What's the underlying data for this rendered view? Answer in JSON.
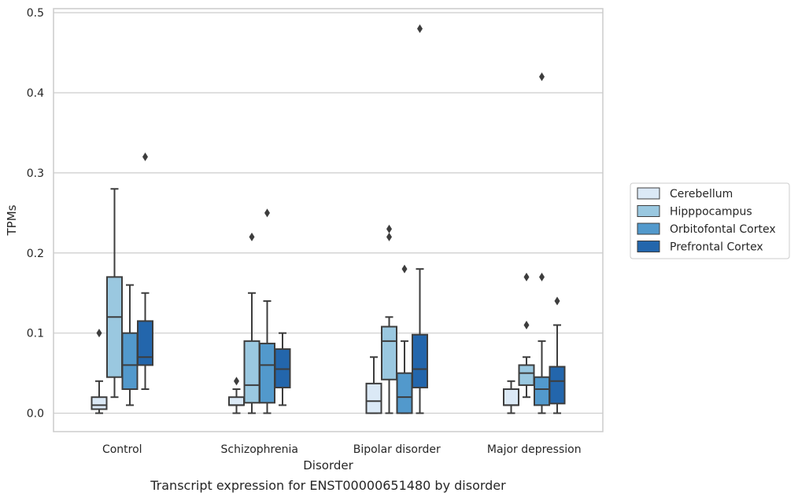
{
  "caption": "Transcript expression for ENST00000651480 by disorder",
  "chart_data": {
    "type": "boxplot",
    "xlabel": "Disorder",
    "ylabel": "TPMs",
    "ylim": [
      -0.023,
      0.505
    ],
    "yticks": [
      0.0,
      0.1,
      0.2,
      0.3,
      0.4,
      0.5
    ],
    "ytick_labels": [
      "0.0",
      "0.1",
      "0.2",
      "0.3",
      "0.4",
      "0.5"
    ],
    "grid": "horizontal",
    "legend_position": "right",
    "categories": [
      "Control",
      "Schizophrenia",
      "Bipolar disorder",
      "Major depression"
    ],
    "series": [
      {
        "name": "Cerebellum",
        "color": "#dbe9f6",
        "boxes": [
          {
            "whislo": 0.0,
            "q1": 0.005,
            "med": 0.01,
            "q3": 0.02,
            "whishi": 0.04,
            "fliers": [
              0.1
            ]
          },
          {
            "whislo": 0.0,
            "q1": 0.01,
            "med": 0.01,
            "q3": 0.02,
            "whishi": 0.03,
            "fliers": [
              0.04
            ]
          },
          {
            "whislo": 0.0,
            "q1": 0.0,
            "med": 0.015,
            "q3": 0.037,
            "whishi": 0.07,
            "fliers": []
          },
          {
            "whislo": 0.0,
            "q1": 0.01,
            "med": 0.01,
            "q3": 0.03,
            "whishi": 0.04,
            "fliers": []
          }
        ]
      },
      {
        "name": "Hipppocampus",
        "color": "#9ac8e0",
        "boxes": [
          {
            "whislo": 0.02,
            "q1": 0.045,
            "med": 0.12,
            "q3": 0.17,
            "whishi": 0.28,
            "fliers": []
          },
          {
            "whislo": 0.0,
            "q1": 0.013,
            "med": 0.035,
            "q3": 0.09,
            "whishi": 0.15,
            "fliers": [
              0.22
            ]
          },
          {
            "whislo": 0.0,
            "q1": 0.042,
            "med": 0.09,
            "q3": 0.108,
            "whishi": 0.12,
            "fliers": [
              0.22,
              0.23
            ]
          },
          {
            "whislo": 0.02,
            "q1": 0.035,
            "med": 0.05,
            "q3": 0.06,
            "whishi": 0.07,
            "fliers": [
              0.11,
              0.17
            ]
          }
        ]
      },
      {
        "name": "Orbitofontal Cortex",
        "color": "#5299cc",
        "boxes": [
          {
            "whislo": 0.01,
            "q1": 0.03,
            "med": 0.06,
            "q3": 0.1,
            "whishi": 0.16,
            "fliers": []
          },
          {
            "whislo": 0.0,
            "q1": 0.013,
            "med": 0.06,
            "q3": 0.087,
            "whishi": 0.14,
            "fliers": [
              0.25
            ]
          },
          {
            "whislo": 0.0,
            "q1": 0.0,
            "med": 0.02,
            "q3": 0.05,
            "whishi": 0.09,
            "fliers": [
              0.18
            ]
          },
          {
            "whislo": 0.0,
            "q1": 0.01,
            "med": 0.03,
            "q3": 0.045,
            "whishi": 0.09,
            "fliers": [
              0.17,
              0.42
            ]
          }
        ]
      },
      {
        "name": "Prefrontal Cortex",
        "color": "#2366ac",
        "boxes": [
          {
            "whislo": 0.03,
            "q1": 0.06,
            "med": 0.07,
            "q3": 0.115,
            "whishi": 0.15,
            "fliers": [
              0.32
            ]
          },
          {
            "whislo": 0.01,
            "q1": 0.032,
            "med": 0.055,
            "q3": 0.08,
            "whishi": 0.1,
            "fliers": []
          },
          {
            "whislo": 0.0,
            "q1": 0.032,
            "med": 0.055,
            "q3": 0.098,
            "whishi": 0.18,
            "fliers": [
              0.48
            ]
          },
          {
            "whislo": 0.0,
            "q1": 0.012,
            "med": 0.04,
            "q3": 0.058,
            "whishi": 0.11,
            "fliers": [
              0.14
            ]
          }
        ]
      }
    ]
  }
}
